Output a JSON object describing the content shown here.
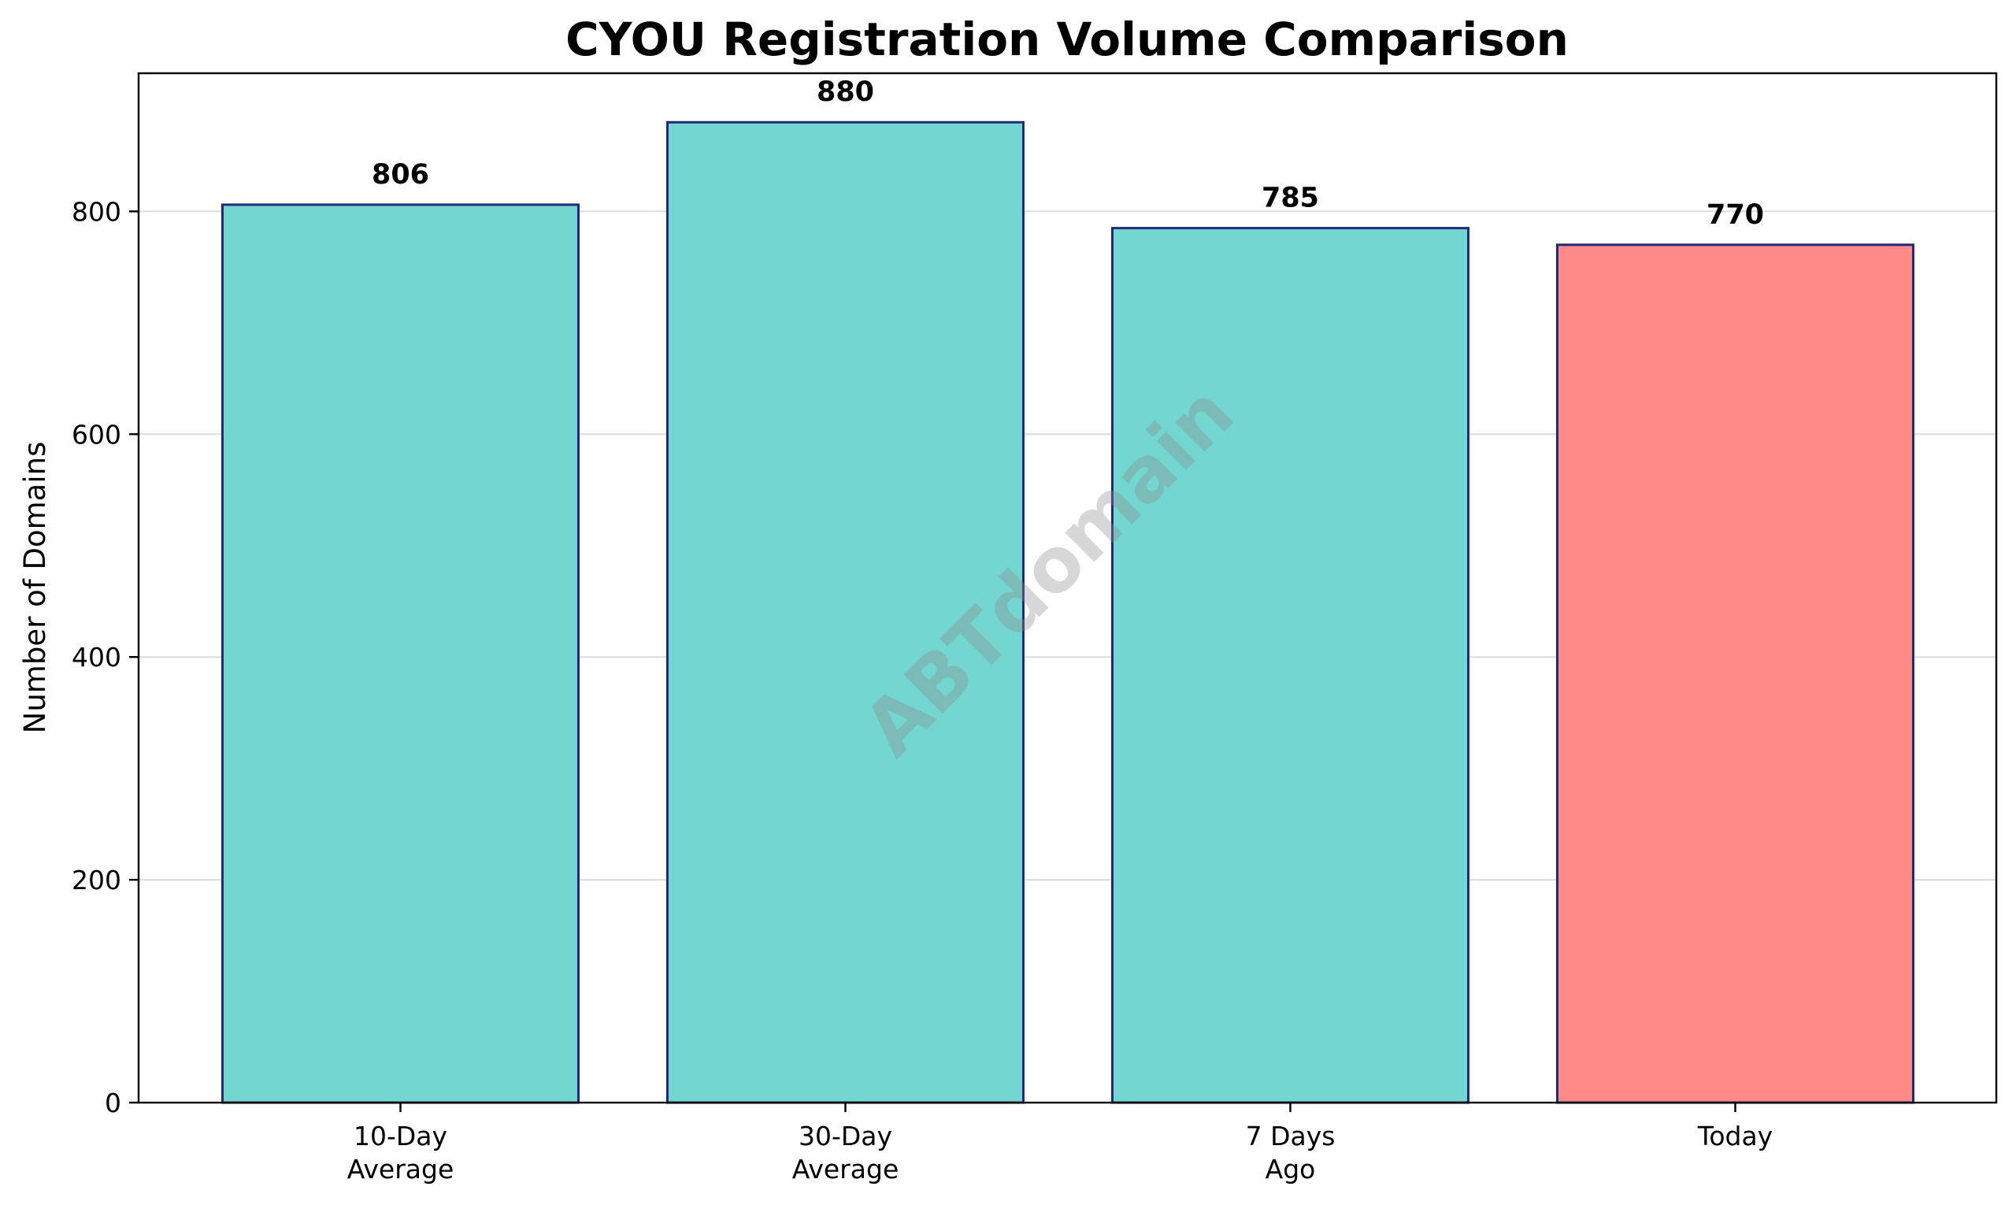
{
  "chart_data": {
    "type": "bar",
    "title": "CYOU Registration Volume Comparison",
    "xlabel": "",
    "ylabel": "Number of Domains",
    "categories": [
      [
        "10-Day",
        "Average"
      ],
      [
        "30-Day",
        "Average"
      ],
      [
        "7 Days",
        "Ago"
      ],
      [
        "Today"
      ]
    ],
    "values": [
      806,
      880,
      785,
      770
    ],
    "value_labels": [
      "806",
      "880",
      "785",
      "770"
    ],
    "bar_colors": [
      "#73d6d0",
      "#73d6d0",
      "#73d6d0",
      "#ff8a88"
    ],
    "bar_edge_color": "#1f2a7a",
    "ylim": [
      0,
      924
    ],
    "yticks": [
      0,
      200,
      400,
      600,
      800
    ],
    "grid": "horizontal",
    "legend": "none"
  },
  "watermark": {
    "text": "ABTdomain"
  }
}
